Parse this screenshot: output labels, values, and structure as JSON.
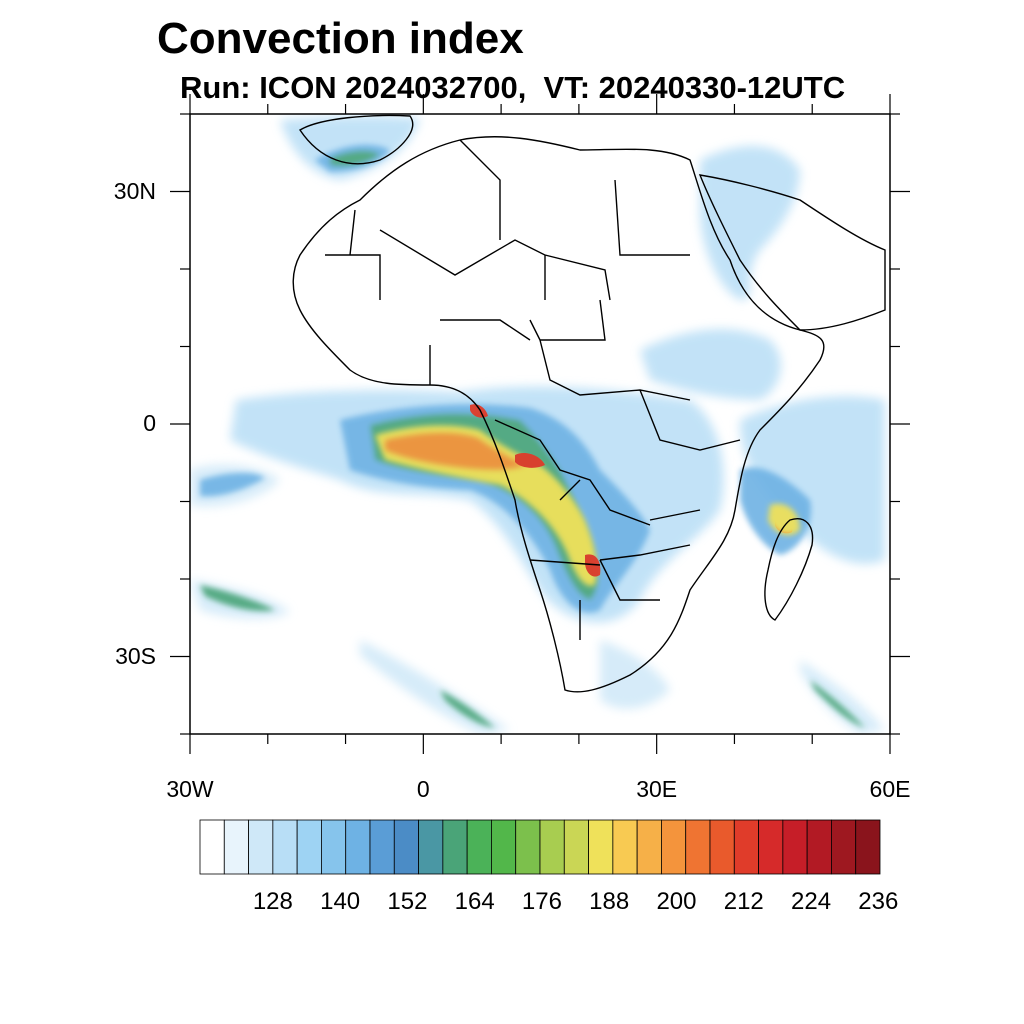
{
  "title": "Convection index",
  "subtitle": "Run: ICON 2024032700,  VT: 20240330-12UTC",
  "axes": {
    "y_labels": [
      {
        "text": "30N",
        "lat": 30
      },
      {
        "text": "0",
        "lat": 0
      },
      {
        "text": "30S",
        "lat": -30
      }
    ],
    "x_labels": [
      {
        "text": "30W",
        "lon": -30
      },
      {
        "text": "0",
        "lon": 0
      },
      {
        "text": "30E",
        "lon": 30
      },
      {
        "text": "60E",
        "lon": 60
      }
    ],
    "lon_range": [
      -30,
      60
    ],
    "lat_range": [
      -40,
      40
    ]
  },
  "colorbar": {
    "colors": [
      "#ffffff",
      "#e8f4fc",
      "#cfe8f8",
      "#b8def6",
      "#9ed3f3",
      "#86c4ec",
      "#6eb2e4",
      "#5a9dd6",
      "#4b8cc6",
      "#4a97a4",
      "#4aa478",
      "#4bb258",
      "#52b74a",
      "#7cc04c",
      "#a8cd50",
      "#cad655",
      "#efe15a",
      "#f8ca52",
      "#f6b048",
      "#f4943c",
      "#ef7432",
      "#e95a2c",
      "#e03c2a",
      "#d62a2a",
      "#c61e28",
      "#b21a24",
      "#9e1820",
      "#8a141c"
    ],
    "labels": [
      "128",
      "140",
      "152",
      "164",
      "176",
      "188",
      "200",
      "212",
      "224",
      "236"
    ]
  },
  "colors": {
    "low": "#9ed3f3",
    "mid": "#4aa478",
    "high": "#efe15a",
    "peak": "#e03c2a",
    "coast": "#000000"
  }
}
